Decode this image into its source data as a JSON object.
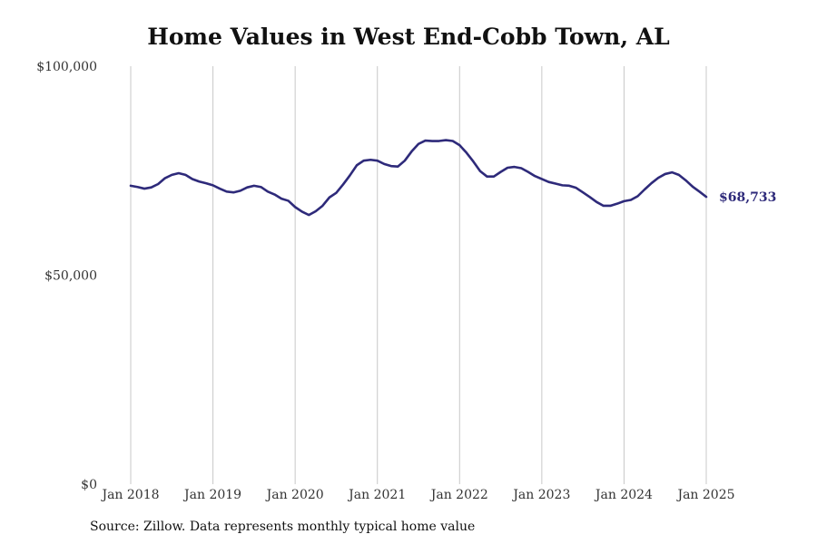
{
  "chart_data": {
    "type": "line",
    "title": "Home Values in West End-Cobb Town, AL",
    "xlabel": "",
    "ylabel": "",
    "ylim": [
      0,
      100000
    ],
    "xlim": [
      "Jan 2018",
      "Jan 2025"
    ],
    "grid": "vertical",
    "legend": "none",
    "y_ticks": [
      "$0",
      "$50,000",
      "$100,000"
    ],
    "x_ticks": [
      "Jan 2018",
      "Jan 2019",
      "Jan 2020",
      "Jan 2021",
      "Jan 2022",
      "Jan 2023",
      "Jan 2024",
      "Jan 2025"
    ],
    "line_color": "#2e2a7a",
    "grid_color": "#c8c8c8",
    "end_label": "$68,733",
    "series": [
      {
        "x": [
          "Jan 2018",
          "Feb 2018",
          "Mar 2018",
          "Apr 2018",
          "May 2018",
          "Jun 2018",
          "Jul 2018",
          "Aug 2018",
          "Sep 2018",
          "Oct 2018",
          "Nov 2018",
          "Dec 2018",
          "Jan 2019",
          "Feb 2019",
          "Mar 2019",
          "Apr 2019",
          "May 2019",
          "Jun 2019",
          "Jul 2019",
          "Aug 2019",
          "Sep 2019",
          "Oct 2019",
          "Nov 2019",
          "Dec 2019",
          "Jan 2020",
          "Feb 2020",
          "Mar 2020",
          "Apr 2020",
          "May 2020",
          "Jun 2020",
          "Jul 2020",
          "Aug 2020",
          "Sep 2020",
          "Oct 2020",
          "Nov 2020",
          "Dec 2020",
          "Jan 2021",
          "Feb 2021",
          "Mar 2021",
          "Apr 2021",
          "May 2021",
          "Jun 2021",
          "Jul 2021",
          "Aug 2021",
          "Sep 2021",
          "Oct 2021",
          "Nov 2021",
          "Dec 2021",
          "Jan 2022",
          "Feb 2022",
          "Mar 2022",
          "Apr 2022",
          "May 2022",
          "Jun 2022",
          "Jul 2022",
          "Aug 2022",
          "Sep 2022",
          "Oct 2022",
          "Nov 2022",
          "Dec 2022",
          "Jan 2023",
          "Feb 2023",
          "Mar 2023",
          "Apr 2023",
          "May 2023",
          "Jun 2023",
          "Jul 2023",
          "Aug 2023",
          "Sep 2023",
          "Oct 2023",
          "Nov 2023",
          "Dec 2023",
          "Jan 2024",
          "Feb 2024",
          "Mar 2024",
          "Apr 2024",
          "May 2024",
          "Jun 2024",
          "Jul 2024",
          "Aug 2024",
          "Sep 2024",
          "Oct 2024",
          "Nov 2024",
          "Dec 2024",
          "Jan 2025"
        ],
        "values": [
          71400,
          71100,
          70700,
          71000,
          71800,
          73200,
          74000,
          74400,
          74000,
          73000,
          72400,
          72000,
          71500,
          70700,
          70000,
          69800,
          70200,
          71000,
          71400,
          71100,
          70000,
          69300,
          68300,
          67800,
          66300,
          65200,
          64400,
          65300,
          66600,
          68600,
          69700,
          71700,
          73900,
          76300,
          77400,
          77600,
          77400,
          76600,
          76100,
          76000,
          77400,
          79600,
          81400,
          82200,
          82100,
          82100,
          82300,
          82100,
          81100,
          79300,
          77200,
          74900,
          73600,
          73600,
          74700,
          75700,
          75900,
          75600,
          74700,
          73700,
          73000,
          72300,
          71900,
          71500,
          71400,
          70900,
          69800,
          68700,
          67500,
          66600,
          66600,
          67100,
          67700,
          68000,
          68900,
          70500,
          72000,
          73300,
          74200,
          74600,
          74000,
          72700,
          71200,
          70000,
          68733
        ]
      }
    ]
  },
  "footer": {
    "source": "Source: Zillow. Data represents monthly typical home value"
  }
}
